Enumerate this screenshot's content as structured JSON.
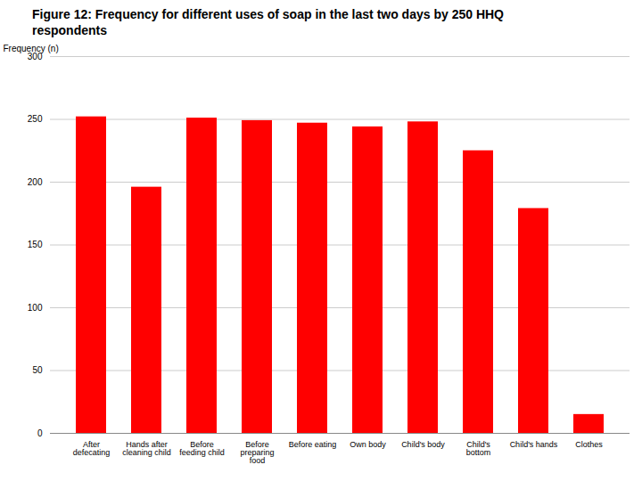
{
  "chart_data": {
    "type": "bar",
    "title": "Figure 12: Frequency for different uses of soap in the last two days by 250 HHQ\nrespondents",
    "ylabel": "Frequency (n)",
    "categories": [
      "After\ndefecating",
      "Hands after\ncleaning child",
      "Before\nfeeding child",
      "Before\npreparing\nfood",
      "Before eating",
      "Own body",
      "Child's body",
      "Child's\nbottom",
      "Child's hands",
      "Clothes"
    ],
    "values": [
      252,
      196,
      251,
      249,
      247,
      244,
      248,
      225,
      179,
      15
    ],
    "color": "#FF0000",
    "ylim": [
      0,
      300
    ],
    "yticks": [
      0,
      50,
      100,
      150,
      200,
      250,
      300
    ],
    "grid": true
  }
}
